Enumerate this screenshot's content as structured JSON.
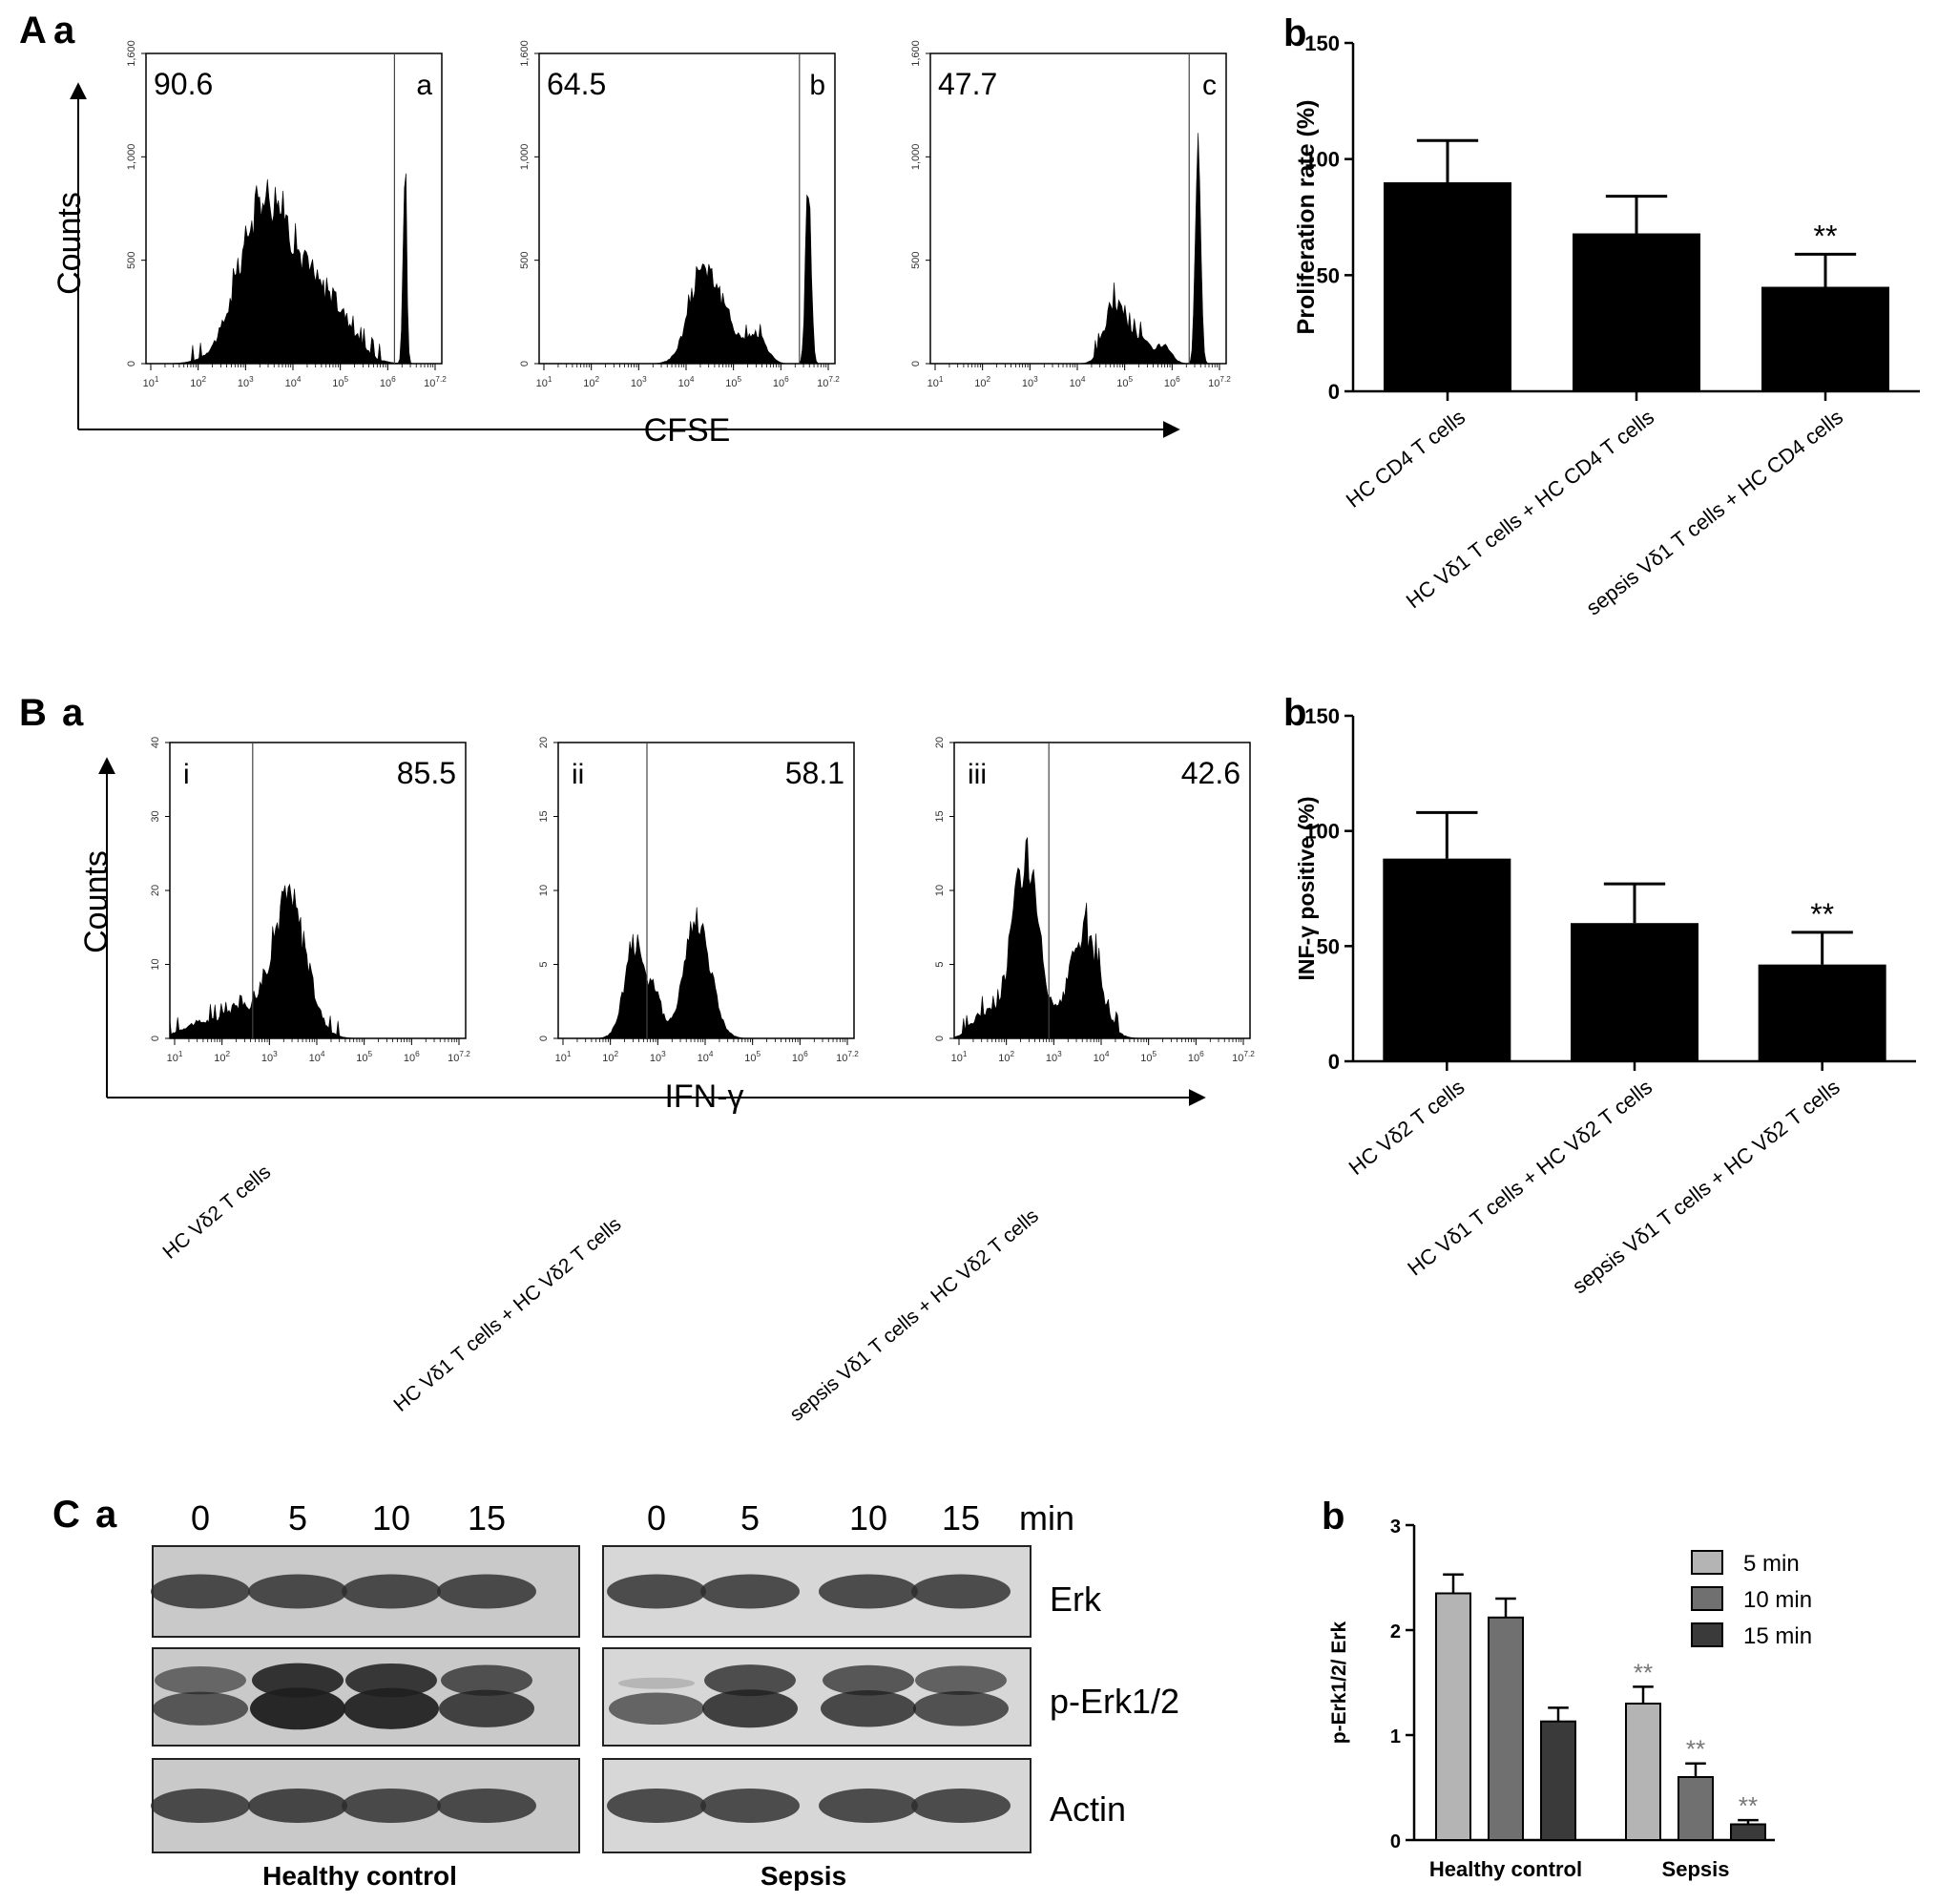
{
  "panel_labels": {
    "A": "A",
    "A_a": "a",
    "A_b": "b",
    "B": "B",
    "B_a": "a",
    "B_b": "b",
    "C": "C",
    "C_a": "a",
    "C_b": "b"
  },
  "panelA": {
    "ylabel": "Counts",
    "xlabel": "CFSE",
    "y_ticks": [
      "0",
      "500",
      "1,000",
      "1,600"
    ],
    "x_ticks": [
      "10^1",
      "10^2",
      "10^3",
      "10^4",
      "10^5",
      "10^6",
      "10^7.2"
    ],
    "histograms": [
      {
        "value": "90.6",
        "letter": "a"
      },
      {
        "value": "64.5",
        "letter": "b"
      },
      {
        "value": "47.7",
        "letter": "c"
      }
    ]
  },
  "panelB": {
    "ylabel": "Counts",
    "xlabel": "IFN-γ",
    "x_ticks": [
      "10^1",
      "10^2",
      "10^3",
      "10^4",
      "10^5",
      "10^6",
      "10^7.2"
    ],
    "histograms": [
      {
        "value": "85.5",
        "letter": "i",
        "y_ticks": [
          "0",
          "10",
          "20",
          "30",
          "40"
        ]
      },
      {
        "value": "58.1",
        "letter": "ii",
        "y_ticks": [
          "0",
          "5",
          "10",
          "15",
          "20"
        ]
      },
      {
        "value": "42.6",
        "letter": "iii",
        "y_ticks": [
          "0",
          "5",
          "10",
          "15",
          "20"
        ]
      }
    ],
    "conditions": [
      "HC Vδ2 T cells",
      "HC Vδ1 T cells + HC Vδ2 T cells",
      "sepsis Vδ1 T cells + HC Vδ2 T cells"
    ]
  },
  "blot": {
    "time_labels": [
      "0",
      "5",
      "10",
      "15"
    ],
    "time_unit": "min",
    "rows": [
      "Erk",
      "p-Erk1/2",
      "Actin"
    ],
    "groups": [
      "Healthy control",
      "Sepsis"
    ]
  },
  "chart_data": [
    {
      "id": "A-b",
      "type": "bar",
      "categories": [
        "HC CD4 T cells",
        "HC Vδ1 T cells + HC CD4 T cells",
        "sepsis Vδ1 T cells + HC CD4 cells"
      ],
      "values": [
        90,
        68,
        45
      ],
      "errors": [
        18,
        16,
        14
      ],
      "annotations": [
        "",
        "",
        "**"
      ],
      "ylabel": "Proliferation rate (%)",
      "ylim": [
        0,
        150
      ],
      "yticks": [
        0,
        50,
        100,
        150
      ],
      "color": "#000000"
    },
    {
      "id": "B-b",
      "type": "bar",
      "categories": [
        "HC Vδ2 T cells",
        "HC Vδ1 T cells + HC Vδ2 T cells",
        "sepsis Vδ1 T cells + HC Vδ2 T cells"
      ],
      "values": [
        88,
        60,
        42
      ],
      "errors": [
        20,
        17,
        14
      ],
      "annotations": [
        "",
        "",
        "**"
      ],
      "ylabel": "INF-γ positive (%)",
      "ylim": [
        0,
        150
      ],
      "yticks": [
        0,
        50,
        100,
        150
      ],
      "color": "#000000"
    },
    {
      "id": "C-b",
      "type": "bar",
      "categories": [
        "Healthy control",
        "Sepsis"
      ],
      "series": [
        {
          "name": "5 min",
          "values": [
            2.35,
            1.3
          ],
          "errors": [
            0.18,
            0.16
          ],
          "color": "#b4b4b4",
          "annotations": [
            "",
            "**"
          ]
        },
        {
          "name": "10 min",
          "values": [
            2.12,
            0.6
          ],
          "errors": [
            0.18,
            0.13
          ],
          "color": "#707070",
          "annotations": [
            "",
            "**"
          ]
        },
        {
          "name": "15 min",
          "values": [
            1.13,
            0.15
          ],
          "errors": [
            0.13,
            0.04
          ],
          "color": "#3a3a3a",
          "annotations": [
            "",
            "**"
          ]
        }
      ],
      "ylabel": "p-Erk1/2/ Erk",
      "ylim": [
        0,
        3
      ],
      "yticks": [
        0,
        1,
        2,
        3
      ],
      "legend": "top-right"
    }
  ]
}
